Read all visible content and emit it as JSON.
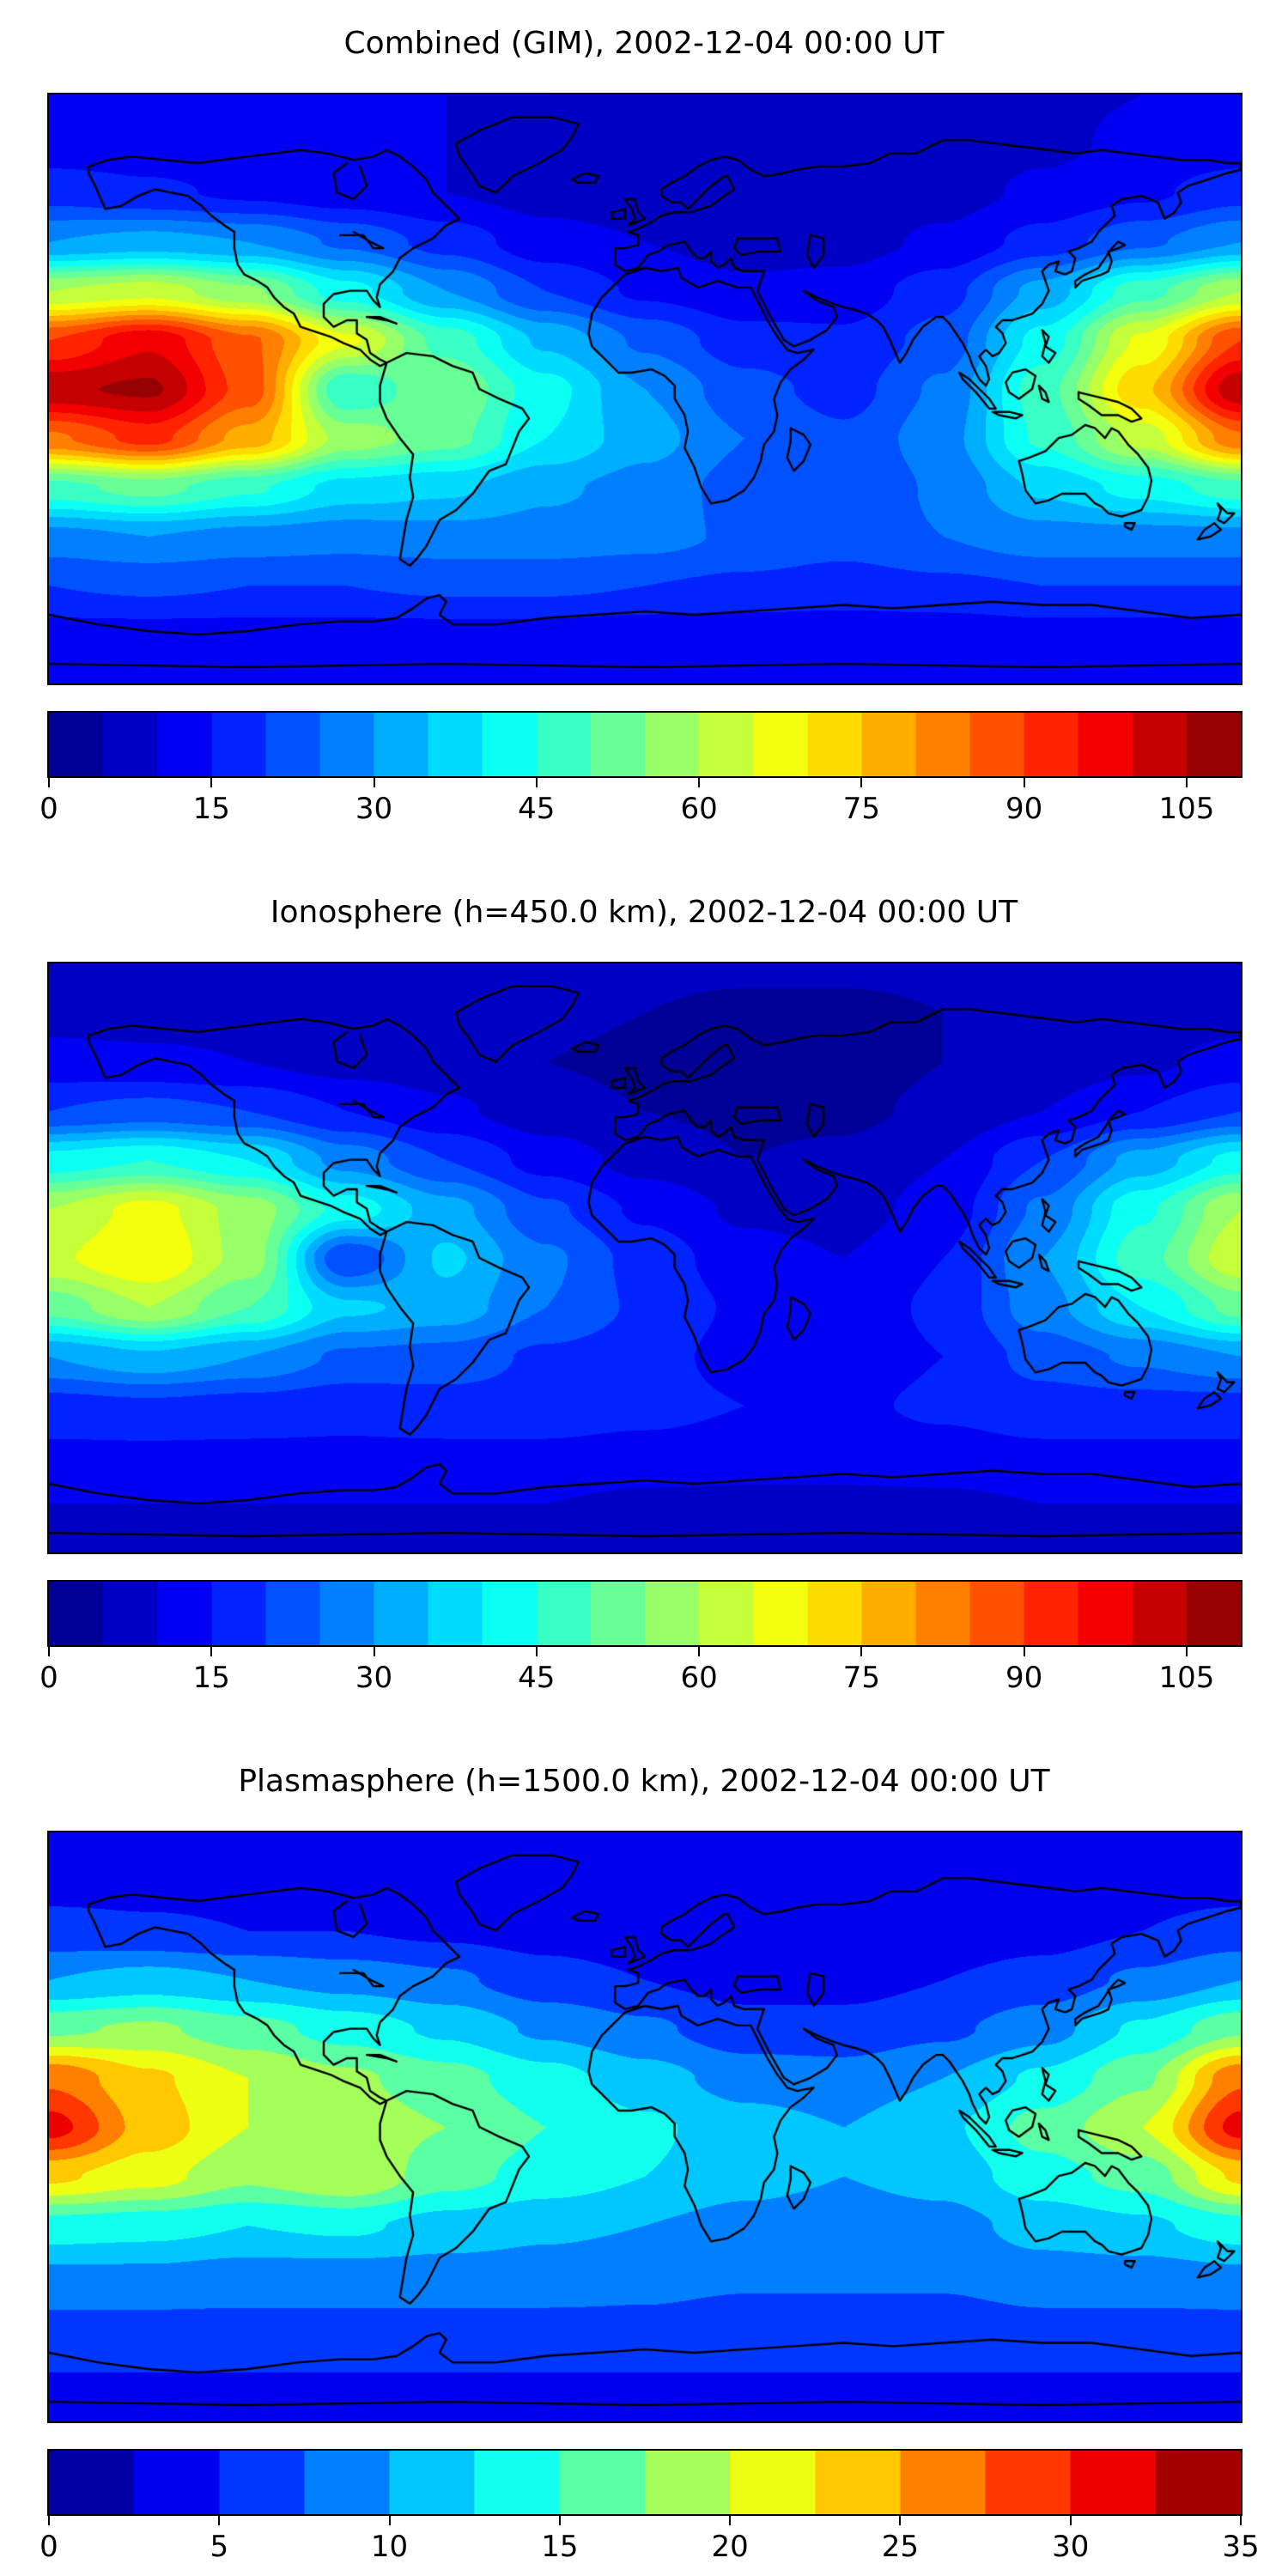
{
  "page": {
    "background": "#ffffff",
    "figure_type": "matplotlib-style stacked global TEC maps"
  },
  "chart_data": [
    {
      "type": "heatmap",
      "title": "Combined (GIM), 2002-12-04 00:00 UT",
      "projection": "equirectangular",
      "colormap": "jet",
      "legend_position": "bottom-colorbar",
      "colorbar": {
        "min": 0,
        "max": 110,
        "step": 5,
        "ticks": [
          0,
          15,
          30,
          45,
          60,
          75,
          90,
          105
        ]
      },
      "lon": [
        -180,
        -150,
        -120,
        -90,
        -60,
        -30,
        0,
        30,
        60,
        90,
        120,
        150,
        180
      ],
      "lat": [
        90,
        75,
        60,
        45,
        30,
        15,
        0,
        -15,
        -30,
        -45,
        -60,
        -75,
        -90
      ],
      "values": [
        [
          10,
          10,
          10,
          10,
          10,
          10,
          9,
          8,
          8,
          8,
          9,
          10,
          10
        ],
        [
          12,
          12,
          12,
          11,
          10,
          9,
          8,
          7,
          7,
          8,
          9,
          11,
          12
        ],
        [
          18,
          16,
          14,
          12,
          10,
          8,
          7,
          6,
          7,
          8,
          11,
          14,
          18
        ],
        [
          30,
          32,
          30,
          24,
          18,
          12,
          10,
          8,
          8,
          11,
          17,
          24,
          30
        ],
        [
          60,
          63,
          56,
          42,
          30,
          20,
          14,
          11,
          12,
          18,
          32,
          48,
          60
        ],
        [
          90,
          99,
          86,
          66,
          48,
          34,
          24,
          17,
          16,
          22,
          42,
          66,
          90
        ],
        [
          104,
          106,
          88,
          45,
          55,
          42,
          30,
          22,
          18,
          26,
          48,
          74,
          104
        ],
        [
          84,
          92,
          78,
          58,
          52,
          40,
          32,
          25,
          21,
          28,
          46,
          62,
          84
        ],
        [
          48,
          52,
          46,
          38,
          36,
          31,
          28,
          23,
          20,
          26,
          36,
          42,
          48
        ],
        [
          28,
          30,
          28,
          27,
          28,
          28,
          27,
          24,
          22,
          25,
          28,
          28,
          28
        ],
        [
          20,
          21,
          20,
          20,
          21,
          21,
          20,
          19,
          18,
          19,
          20,
          20,
          20
        ],
        [
          13,
          13,
          13,
          13,
          13,
          13,
          12,
          12,
          12,
          12,
          13,
          13,
          13
        ],
        [
          10,
          10,
          10,
          10,
          10,
          10,
          10,
          10,
          10,
          10,
          10,
          10,
          10
        ]
      ]
    },
    {
      "type": "heatmap",
      "title": "Ionosphere  (h=450.0 km), 2002-12-04 00:00 UT",
      "projection": "equirectangular",
      "colormap": "jet",
      "legend_position": "bottom-colorbar",
      "colorbar": {
        "min": 0,
        "max": 110,
        "step": 5,
        "ticks": [
          0,
          15,
          30,
          45,
          60,
          75,
          90,
          105
        ]
      },
      "lon": [
        -180,
        -150,
        -120,
        -90,
        -60,
        -30,
        0,
        30,
        60,
        90,
        120,
        150,
        180
      ],
      "lat": [
        90,
        75,
        60,
        45,
        30,
        15,
        0,
        -15,
        -30,
        -45,
        -60,
        -75,
        -90
      ],
      "values": [
        [
          7,
          7,
          7,
          7,
          7,
          7,
          6,
          6,
          6,
          6,
          6,
          7,
          7
        ],
        [
          8,
          8,
          8,
          8,
          7,
          6,
          5,
          4,
          4,
          5,
          6,
          7,
          8
        ],
        [
          12,
          11,
          10,
          8,
          7,
          5,
          4,
          3,
          3,
          5,
          7,
          9,
          12
        ],
        [
          20,
          22,
          20,
          15,
          11,
          7,
          5,
          4,
          4,
          6,
          10,
          15,
          20
        ],
        [
          42,
          45,
          40,
          28,
          20,
          13,
          8,
          5,
          6,
          10,
          20,
          32,
          42
        ],
        [
          60,
          67,
          58,
          43,
          32,
          21,
          14,
          9,
          8,
          12,
          26,
          44,
          60
        ],
        [
          64,
          70,
          58,
          20,
          36,
          26,
          18,
          12,
          10,
          15,
          30,
          48,
          64
        ],
        [
          52,
          60,
          50,
          36,
          33,
          25,
          19,
          14,
          12,
          16,
          28,
          40,
          52
        ],
        [
          30,
          34,
          30,
          24,
          23,
          19,
          17,
          13,
          12,
          15,
          22,
          26,
          30
        ],
        [
          18,
          19,
          18,
          17,
          18,
          18,
          17,
          15,
          14,
          16,
          18,
          18,
          18
        ],
        [
          14,
          14,
          14,
          14,
          14,
          14,
          13,
          12,
          12,
          13,
          14,
          14,
          14
        ],
        [
          10,
          10,
          10,
          10,
          10,
          10,
          9,
          9,
          9,
          9,
          10,
          10,
          10
        ],
        [
          8,
          8,
          8,
          8,
          8,
          8,
          8,
          8,
          8,
          8,
          8,
          8,
          8
        ]
      ]
    },
    {
      "type": "heatmap",
      "title": "Plasmasphere (h=1500.0 km), 2002-12-04 00:00 UT",
      "projection": "equirectangular",
      "colormap": "jet",
      "legend_position": "bottom-colorbar",
      "colorbar": {
        "min": 0,
        "max": 35,
        "step": 2.5,
        "ticks": [
          0,
          5,
          10,
          15,
          20,
          25,
          30,
          35
        ]
      },
      "lon": [
        -180,
        -150,
        -120,
        -90,
        -60,
        -30,
        0,
        30,
        60,
        90,
        120,
        150,
        180
      ],
      "lat": [
        90,
        75,
        60,
        45,
        30,
        15,
        0,
        -15,
        -30,
        -45,
        -60,
        -75,
        -90
      ],
      "values": [
        [
          3.5,
          3.5,
          3.5,
          3.5,
          3.5,
          3.5,
          3,
          3,
          3,
          3,
          3,
          3.5,
          3.5
        ],
        [
          4,
          4,
          4,
          4,
          3.5,
          3.5,
          3,
          3,
          3,
          3,
          3.5,
          4,
          4
        ],
        [
          6,
          5.5,
          5,
          5,
          4.5,
          4,
          3.5,
          3,
          3,
          3.5,
          4,
          5,
          6
        ],
        [
          10,
          11,
          10,
          9,
          8,
          6,
          5,
          4,
          4,
          5,
          6,
          8,
          10
        ],
        [
          17,
          18,
          16,
          14,
          12,
          9.5,
          8,
          6,
          6,
          7,
          9,
          13,
          17
        ],
        [
          27,
          23,
          20,
          18,
          16,
          13.5,
          11,
          9,
          8.5,
          10,
          13,
          17,
          27
        ],
        [
          31,
          24,
          20,
          19,
          17.5,
          15,
          13,
          11,
          10,
          12,
          16,
          20,
          31
        ],
        [
          23,
          21,
          18,
          20,
          16,
          14,
          12.5,
          11,
          10,
          11,
          14,
          16,
          23
        ],
        [
          14,
          13.5,
          12.5,
          13,
          11.5,
          10.5,
          10,
          9,
          8.5,
          9,
          11,
          12,
          14
        ],
        [
          9.5,
          9.5,
          9,
          9,
          9,
          9,
          8.5,
          8,
          8,
          8,
          9,
          9,
          9.5
        ],
        [
          7,
          7,
          7,
          7,
          7,
          7,
          7,
          6.5,
          6.5,
          6.5,
          7,
          7,
          7
        ],
        [
          5,
          5,
          5,
          5,
          5,
          5,
          5,
          5,
          5,
          5,
          5,
          5,
          5
        ],
        [
          4,
          4,
          4,
          4,
          4,
          4,
          4,
          4,
          4,
          4,
          4,
          4,
          4
        ]
      ]
    }
  ]
}
